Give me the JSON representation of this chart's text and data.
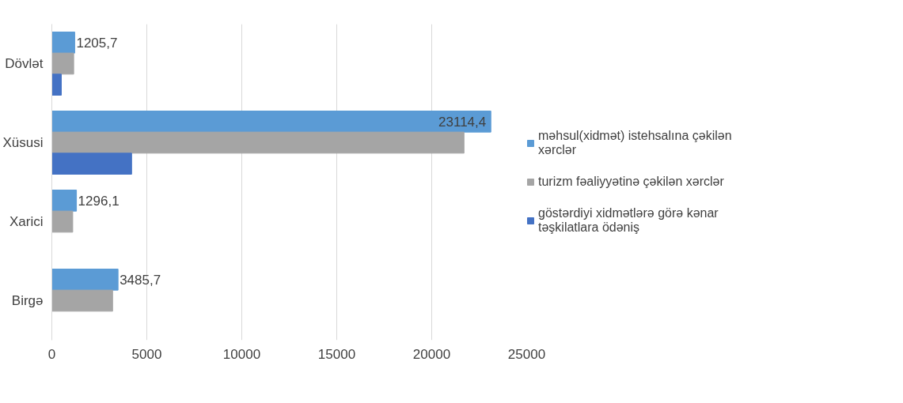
{
  "chart_data": {
    "type": "bar",
    "orientation": "horizontal",
    "categories": [
      "Dövlət",
      "Xüsusi",
      "Xarici",
      "Birgə"
    ],
    "series": [
      {
        "name": "məhsul(xidmət) istehsalına çəkilən xərclər",
        "color": "#5b9bd5",
        "values": [
          1205.7,
          23114.4,
          1296.1,
          3485.7
        ],
        "value_labels": [
          "1205,7",
          "23114,4",
          "1296,1",
          "3485,7"
        ]
      },
      {
        "name": "turizm fəaliyyətinə çəkilən xərclər",
        "color": "#a5a5a5",
        "values": [
          1150,
          21700,
          1100,
          3200
        ]
      },
      {
        "name": "göstərdiyi xidmətlərə görə kənar təşkilatlara ödəniş",
        "color": "#4472c4",
        "values": [
          500,
          4200,
          null,
          null
        ]
      }
    ],
    "xlim": [
      0,
      25000
    ],
    "xticks": [
      0,
      5000,
      10000,
      15000,
      20000,
      25000
    ],
    "grid": "x",
    "legend": "right"
  }
}
